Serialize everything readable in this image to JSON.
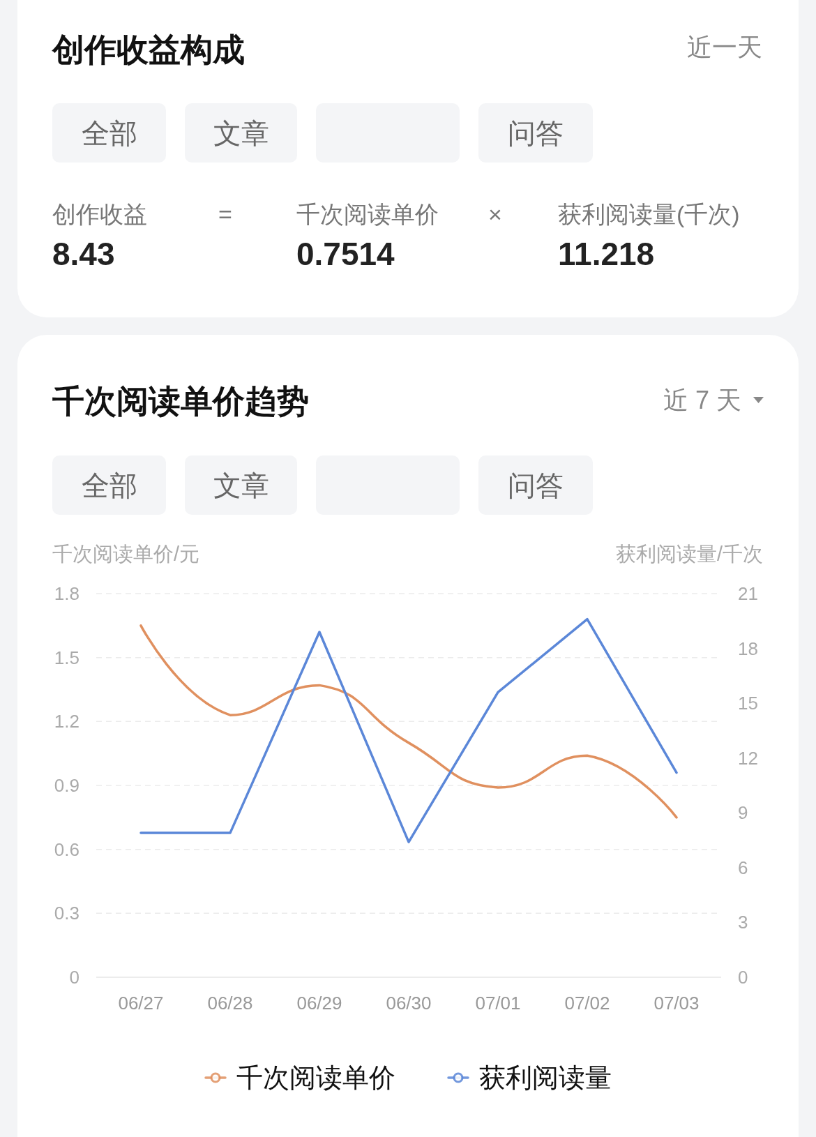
{
  "chart_data": [
    {
      "type": "other",
      "title": "创作收益构成",
      "annotations": [
        "近一天",
        "全部",
        "文章",
        "问答",
        "创作收益",
        "=",
        "千次阅读单价",
        "×",
        "获利阅读量(千次)",
        "8.43",
        "0.7514",
        "11.218"
      ]
    },
    {
      "type": "line",
      "title": "千次阅读单价趋势",
      "annotations": [
        "近 7 天",
        "全部",
        "文章",
        "问答"
      ],
      "ylabel": "千次阅读单价/元",
      "y2label": "获利阅读量/千次",
      "categories": [
        "06/27",
        "06/28",
        "06/29",
        "06/30",
        "07/01",
        "07/02",
        "07/03"
      ],
      "ylim": [
        0,
        1.8
      ],
      "yticks": [
        0,
        0.3,
        0.6,
        0.9,
        1.2,
        1.5,
        1.8
      ],
      "y2lim": [
        0,
        21
      ],
      "y2ticks": [
        0,
        3,
        6,
        9,
        12,
        15,
        18,
        21
      ],
      "grid": "y",
      "legend": "bottom",
      "series": [
        {
          "name": "千次阅读单价",
          "color": "#e0905f",
          "values": [
            1.65,
            1.23,
            1.37,
            1.1,
            0.89,
            1.04,
            0.75
          ]
        },
        {
          "name": "获利阅读量",
          "color": "#5b87d8",
          "axis": "y2",
          "values": [
            7.9,
            7.9,
            18.9,
            7.4,
            15.6,
            19.6,
            11.2
          ]
        }
      ]
    }
  ]
}
